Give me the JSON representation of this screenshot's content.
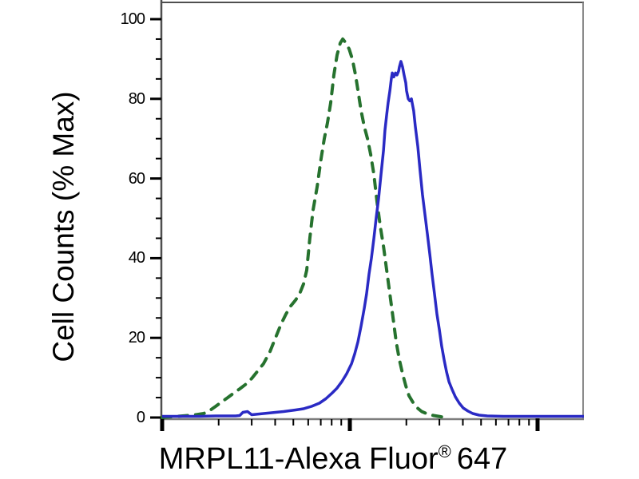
{
  "figure": {
    "y_axis": {
      "label": "Cell Counts (% Max)",
      "ticks": [
        0,
        20,
        40,
        60,
        80,
        100
      ],
      "minor_tick_step": 5,
      "range": [
        0,
        105
      ]
    },
    "x_axis": {
      "label_main": "MRPL11-Alexa Fluor",
      "label_reg": "®",
      "label_suffix": "647",
      "scale": "log",
      "major_decades": 3,
      "tick_labels_visible": false
    },
    "colors": {
      "control_green": "#26722e",
      "antibody_blue": "#2a2ac4",
      "axis_gray": "#7d7d7d",
      "frame_dark": "#4f4f4f",
      "tick_black": "#000000",
      "background": "#ffffff"
    }
  },
  "chart_data": {
    "type": "line",
    "subtype": "flow-cytometry-histogram-overlay",
    "title": "",
    "xlabel": "MRPL11-Alexa Fluor® 647",
    "ylabel": "Cell Counts (% Max)",
    "x_scale": "log",
    "x_unit": "log decades from axis origin (fluorescence intensity, unlabeled ticks)",
    "xlim_decades": [
      0,
      2.243
    ],
    "ylim": [
      0,
      105
    ],
    "grid": false,
    "legend_position": "none",
    "series": [
      {
        "name": "control-dashed-green",
        "style": "dashed",
        "color": "#26722e",
        "peak": {
          "x_decades": 0.962,
          "y_percent": 95
        },
        "points": [
          [
            0.0,
            0
          ],
          [
            0.136,
            0.5
          ],
          [
            0.179,
            0.7
          ],
          [
            0.221,
            1
          ],
          [
            0.255,
            1.8
          ],
          [
            0.285,
            2.8
          ],
          [
            0.319,
            4
          ],
          [
            0.349,
            5
          ],
          [
            0.383,
            6.2
          ],
          [
            0.413,
            7.2
          ],
          [
            0.447,
            8.4
          ],
          [
            0.477,
            9.8
          ],
          [
            0.506,
            11.5
          ],
          [
            0.54,
            13.5
          ],
          [
            0.574,
            16.5
          ],
          [
            0.604,
            20
          ],
          [
            0.634,
            23.5
          ],
          [
            0.66,
            26
          ],
          [
            0.685,
            28
          ],
          [
            0.711,
            29.5
          ],
          [
            0.732,
            31
          ],
          [
            0.753,
            33.5
          ],
          [
            0.77,
            37
          ],
          [
            0.787,
            45
          ],
          [
            0.804,
            52
          ],
          [
            0.826,
            58
          ],
          [
            0.847,
            65
          ],
          [
            0.864,
            70
          ],
          [
            0.881,
            74
          ],
          [
            0.898,
            79
          ],
          [
            0.915,
            86
          ],
          [
            0.932,
            91
          ],
          [
            0.949,
            94
          ],
          [
            0.962,
            95
          ],
          [
            0.979,
            94
          ],
          [
            0.996,
            92.5
          ],
          [
            1.013,
            90
          ],
          [
            1.03,
            86
          ],
          [
            1.047,
            81
          ],
          [
            1.06,
            77
          ],
          [
            1.077,
            73
          ],
          [
            1.094,
            70
          ],
          [
            1.111,
            66
          ],
          [
            1.128,
            61
          ],
          [
            1.145,
            54
          ],
          [
            1.162,
            48
          ],
          [
            1.179,
            43
          ],
          [
            1.196,
            37
          ],
          [
            1.213,
            31
          ],
          [
            1.23,
            25
          ],
          [
            1.247,
            19
          ],
          [
            1.264,
            14.5
          ],
          [
            1.281,
            11
          ],
          [
            1.298,
            8
          ],
          [
            1.315,
            5.5
          ],
          [
            1.336,
            3.8
          ],
          [
            1.357,
            2.5
          ],
          [
            1.383,
            1.5
          ],
          [
            1.413,
            0.9
          ],
          [
            1.447,
            0.5
          ],
          [
            1.485,
            0.2
          ],
          [
            1.519,
            0
          ]
        ]
      },
      {
        "name": "antibody-solid-blue",
        "style": "solid",
        "color": "#2a2ac4",
        "peak": {
          "x_decades": 1.272,
          "y_percent": 89.4
        },
        "points": [
          [
            0.0,
            0.3
          ],
          [
            0.2,
            0.3
          ],
          [
            0.285,
            0.4
          ],
          [
            0.391,
            0.4
          ],
          [
            0.413,
            0.5
          ],
          [
            0.43,
            1.3
          ],
          [
            0.455,
            1.5
          ],
          [
            0.477,
            0.7
          ],
          [
            0.519,
            0.9
          ],
          [
            0.583,
            1.2
          ],
          [
            0.647,
            1.5
          ],
          [
            0.711,
            1.9
          ],
          [
            0.753,
            2.2
          ],
          [
            0.796,
            2.8
          ],
          [
            0.838,
            3.6
          ],
          [
            0.872,
            4.7
          ],
          [
            0.902,
            6
          ],
          [
            0.932,
            7.4
          ],
          [
            0.957,
            9
          ],
          [
            0.983,
            11
          ],
          [
            1.009,
            13.5
          ],
          [
            1.026,
            16
          ],
          [
            1.043,
            19
          ],
          [
            1.06,
            23
          ],
          [
            1.077,
            27.5
          ],
          [
            1.089,
            31
          ],
          [
            1.102,
            36
          ],
          [
            1.115,
            40
          ],
          [
            1.128,
            45
          ],
          [
            1.14,
            50
          ],
          [
            1.153,
            55
          ],
          [
            1.166,
            61
          ],
          [
            1.179,
            67
          ],
          [
            1.187,
            72
          ],
          [
            1.196,
            76
          ],
          [
            1.204,
            79
          ],
          [
            1.213,
            82
          ],
          [
            1.221,
            85
          ],
          [
            1.226,
            86.5
          ],
          [
            1.234,
            85.5
          ],
          [
            1.243,
            86.5
          ],
          [
            1.251,
            86
          ],
          [
            1.26,
            87
          ],
          [
            1.264,
            88
          ],
          [
            1.272,
            89.4
          ],
          [
            1.281,
            88
          ],
          [
            1.289,
            86
          ],
          [
            1.298,
            84
          ],
          [
            1.302,
            82
          ],
          [
            1.311,
            80
          ],
          [
            1.319,
            79.5
          ],
          [
            1.328,
            80
          ],
          [
            1.332,
            79
          ],
          [
            1.34,
            77
          ],
          [
            1.349,
            73
          ],
          [
            1.362,
            68
          ],
          [
            1.374,
            62
          ],
          [
            1.387,
            56
          ],
          [
            1.4,
            51
          ],
          [
            1.413,
            46
          ],
          [
            1.426,
            41
          ],
          [
            1.438,
            36
          ],
          [
            1.451,
            31
          ],
          [
            1.464,
            26
          ],
          [
            1.477,
            22
          ],
          [
            1.489,
            18
          ],
          [
            1.502,
            14.5
          ],
          [
            1.515,
            11.5
          ],
          [
            1.528,
            9
          ],
          [
            1.545,
            7
          ],
          [
            1.562,
            5.2
          ],
          [
            1.583,
            3.6
          ],
          [
            1.604,
            2.4
          ],
          [
            1.63,
            1.6
          ],
          [
            1.655,
            1
          ],
          [
            1.689,
            0.6
          ],
          [
            1.732,
            0.4
          ],
          [
            1.817,
            0.3
          ],
          [
            1.945,
            0.3
          ],
          [
            2.115,
            0.3
          ],
          [
            2.247,
            0.3
          ]
        ]
      }
    ]
  }
}
